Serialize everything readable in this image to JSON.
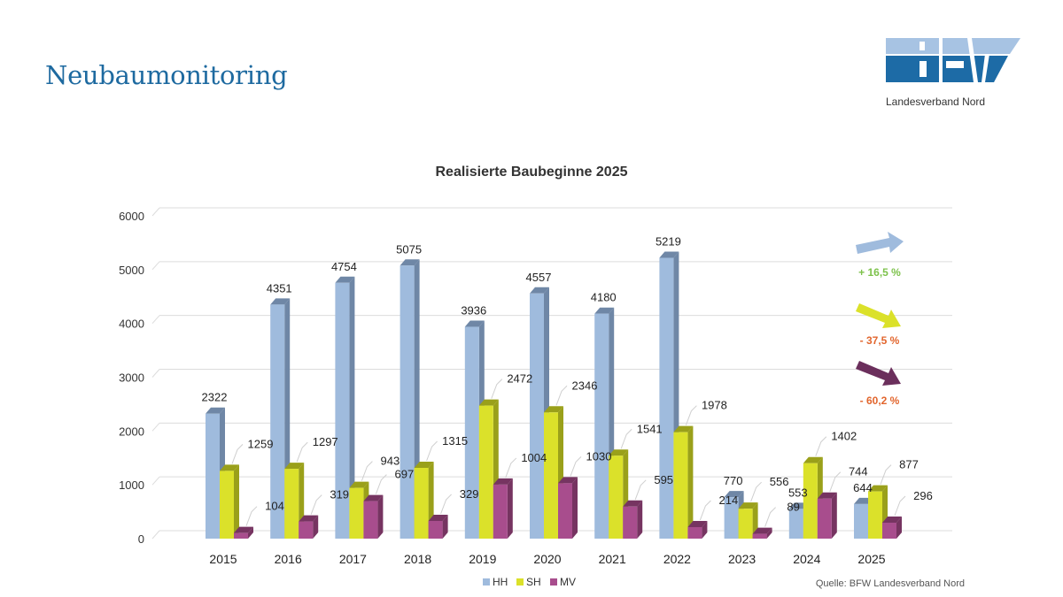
{
  "header": {
    "title": "Neubaumonitoring",
    "logo_text": "BFW",
    "logo_subtitle": "Landesverband Nord"
  },
  "colors": {
    "title": "#1e6aa0",
    "logo_light": "#a7c3e3",
    "logo_dark": "#1d6ba6"
  },
  "chart_data": {
    "type": "bar",
    "title": "Realisierte Baubeginne 2025",
    "xlabel": "",
    "ylabel": "",
    "ylim": [
      0,
      6000
    ],
    "yticks": [
      0,
      1000,
      2000,
      3000,
      4000,
      5000,
      6000
    ],
    "grid": true,
    "categories": [
      "2015",
      "2016",
      "2017",
      "2018",
      "2019",
      "2020",
      "2021",
      "2022",
      "2023",
      "2024",
      "2025"
    ],
    "series": [
      {
        "name": "HH",
        "color": "#9fbbdd",
        "side": "#6f87a6",
        "values": [
          2322,
          4351,
          4754,
          5075,
          3936,
          4557,
          4180,
          5219,
          770,
          553,
          644
        ]
      },
      {
        "name": "SH",
        "color": "#dbe12a",
        "side": "#9aa01a",
        "values": [
          1259,
          1297,
          943,
          1315,
          2472,
          2346,
          1541,
          1978,
          556,
          1402,
          877
        ]
      },
      {
        "name": "MV",
        "color": "#a84d8d",
        "side": "#763461",
        "values": [
          104,
          319,
          697,
          329,
          1004,
          1030,
          595,
          214,
          89,
          744,
          296
        ]
      }
    ],
    "legend": {
      "position": "bottom",
      "entries": [
        "HH",
        "SH",
        "MV"
      ]
    },
    "annotations": [
      {
        "series": "HH",
        "direction": "up",
        "text": "+ 16,5 %",
        "arrow_color": "#9fbbdd",
        "text_color": "#7dc24b"
      },
      {
        "series": "SH",
        "direction": "down",
        "text": "- 37,5 %",
        "arrow_color": "#dbe12a",
        "text_color": "#e2662e"
      },
      {
        "series": "MV",
        "direction": "down",
        "text": "- 60,2 %",
        "arrow_color": "#6b2f5c",
        "text_color": "#e2662e"
      }
    ],
    "source": "Quelle: BFW Landesverband Nord"
  }
}
